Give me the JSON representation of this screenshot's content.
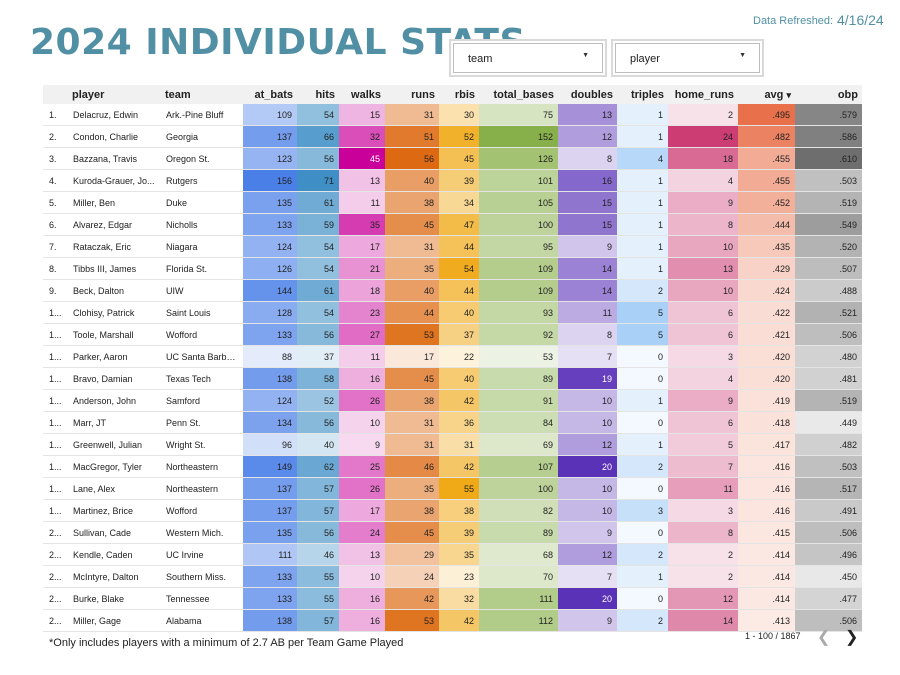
{
  "header": {
    "title": "2024 INDIVIDUAL STATS",
    "refresh_label": "Data Refreshed:",
    "refresh_date": "4/16/24"
  },
  "filters": [
    {
      "label": "team",
      "icon": "caret-down-icon"
    },
    {
      "label": "player",
      "icon": "caret-down-icon"
    }
  ],
  "table": {
    "sort_indicator": "▾",
    "headers": {
      "index": "",
      "player": "player",
      "team": "team",
      "at_bats": "at_bats",
      "hits": "hits",
      "walks": "walks",
      "runs": "runs",
      "rbis": "rbis",
      "total_bases": "total_bases",
      "doubles": "doubles",
      "triples": "triples",
      "home_runs": "home_runs",
      "avg": "avg",
      "obp": "obp"
    },
    "rows": [
      {
        "idx": "1.",
        "player": "Delacruz, Edwin",
        "team": "Ark.-Pine Bluff",
        "at_bats": "109",
        "hits": "54",
        "walks": "15",
        "runs": "31",
        "rbis": "30",
        "total_bases": "75",
        "doubles": "13",
        "triples": "1",
        "home_runs": "2",
        "avg": ".495",
        "obp": ".579"
      },
      {
        "idx": "2.",
        "player": "Condon, Charlie",
        "team": "Georgia",
        "at_bats": "137",
        "hits": "66",
        "walks": "32",
        "runs": "51",
        "rbis": "52",
        "total_bases": "152",
        "doubles": "12",
        "triples": "1",
        "home_runs": "24",
        "avg": ".482",
        "obp": ".586"
      },
      {
        "idx": "3.",
        "player": "Bazzana, Travis",
        "team": "Oregon St.",
        "at_bats": "123",
        "hits": "56",
        "walks": "45",
        "runs": "56",
        "rbis": "45",
        "total_bases": "126",
        "doubles": "8",
        "triples": "4",
        "home_runs": "18",
        "avg": ".455",
        "obp": ".610"
      },
      {
        "idx": "4.",
        "player": "Kuroda-Grauer, Jo...",
        "team": "Rutgers",
        "at_bats": "156",
        "hits": "71",
        "walks": "13",
        "runs": "40",
        "rbis": "39",
        "total_bases": "101",
        "doubles": "16",
        "triples": "1",
        "home_runs": "4",
        "avg": ".455",
        "obp": ".503"
      },
      {
        "idx": "5.",
        "player": "Miller, Ben",
        "team": "Duke",
        "at_bats": "135",
        "hits": "61",
        "walks": "11",
        "runs": "38",
        "rbis": "34",
        "total_bases": "105",
        "doubles": "15",
        "triples": "1",
        "home_runs": "9",
        "avg": ".452",
        "obp": ".519"
      },
      {
        "idx": "6.",
        "player": "Alvarez, Edgar",
        "team": "Nicholls",
        "at_bats": "133",
        "hits": "59",
        "walks": "35",
        "runs": "45",
        "rbis": "47",
        "total_bases": "100",
        "doubles": "15",
        "triples": "1",
        "home_runs": "8",
        "avg": ".444",
        "obp": ".549"
      },
      {
        "idx": "7.",
        "player": "Rataczak, Eric",
        "team": "Niagara",
        "at_bats": "124",
        "hits": "54",
        "walks": "17",
        "runs": "31",
        "rbis": "44",
        "total_bases": "95",
        "doubles": "9",
        "triples": "1",
        "home_runs": "10",
        "avg": ".435",
        "obp": ".520"
      },
      {
        "idx": "8.",
        "player": "Tibbs III, James",
        "team": "Florida St.",
        "at_bats": "126",
        "hits": "54",
        "walks": "21",
        "runs": "35",
        "rbis": "54",
        "total_bases": "109",
        "doubles": "14",
        "triples": "1",
        "home_runs": "13",
        "avg": ".429",
        "obp": ".507"
      },
      {
        "idx": "9.",
        "player": "Beck, Dalton",
        "team": "UIW",
        "at_bats": "144",
        "hits": "61",
        "walks": "18",
        "runs": "40",
        "rbis": "44",
        "total_bases": "109",
        "doubles": "14",
        "triples": "2",
        "home_runs": "10",
        "avg": ".424",
        "obp": ".488"
      },
      {
        "idx": "1...",
        "player": "Clohisy, Patrick",
        "team": "Saint Louis",
        "at_bats": "128",
        "hits": "54",
        "walks": "23",
        "runs": "44",
        "rbis": "40",
        "total_bases": "93",
        "doubles": "11",
        "triples": "5",
        "home_runs": "6",
        "avg": ".422",
        "obp": ".521"
      },
      {
        "idx": "1...",
        "player": "Toole, Marshall",
        "team": "Wofford",
        "at_bats": "133",
        "hits": "56",
        "walks": "27",
        "runs": "53",
        "rbis": "37",
        "total_bases": "92",
        "doubles": "8",
        "triples": "5",
        "home_runs": "6",
        "avg": ".421",
        "obp": ".506"
      },
      {
        "idx": "1...",
        "player": "Parker, Aaron",
        "team": "UC Santa Barba...",
        "at_bats": "88",
        "hits": "37",
        "walks": "11",
        "runs": "17",
        "rbis": "22",
        "total_bases": "53",
        "doubles": "7",
        "triples": "0",
        "home_runs": "3",
        "avg": ".420",
        "obp": ".480"
      },
      {
        "idx": "1...",
        "player": "Bravo, Damian",
        "team": "Texas Tech",
        "at_bats": "138",
        "hits": "58",
        "walks": "16",
        "runs": "45",
        "rbis": "40",
        "total_bases": "89",
        "doubles": "19",
        "triples": "0",
        "home_runs": "4",
        "avg": ".420",
        "obp": ".481"
      },
      {
        "idx": "1...",
        "player": "Anderson, John",
        "team": "Samford",
        "at_bats": "124",
        "hits": "52",
        "walks": "26",
        "runs": "38",
        "rbis": "42",
        "total_bases": "91",
        "doubles": "10",
        "triples": "1",
        "home_runs": "9",
        "avg": ".419",
        "obp": ".519"
      },
      {
        "idx": "1...",
        "player": "Marr, JT",
        "team": "Penn St.",
        "at_bats": "134",
        "hits": "56",
        "walks": "10",
        "runs": "31",
        "rbis": "36",
        "total_bases": "84",
        "doubles": "10",
        "triples": "0",
        "home_runs": "6",
        "avg": ".418",
        "obp": ".449"
      },
      {
        "idx": "1...",
        "player": "Greenwell, Julian",
        "team": "Wright St.",
        "at_bats": "96",
        "hits": "40",
        "walks": "9",
        "runs": "31",
        "rbis": "31",
        "total_bases": "69",
        "doubles": "12",
        "triples": "1",
        "home_runs": "5",
        "avg": ".417",
        "obp": ".482"
      },
      {
        "idx": "1...",
        "player": "MacGregor, Tyler",
        "team": "Northeastern",
        "at_bats": "149",
        "hits": "62",
        "walks": "25",
        "runs": "46",
        "rbis": "42",
        "total_bases": "107",
        "doubles": "20",
        "triples": "2",
        "home_runs": "7",
        "avg": ".416",
        "obp": ".503"
      },
      {
        "idx": "1...",
        "player": "Lane, Alex",
        "team": "Northeastern",
        "at_bats": "137",
        "hits": "57",
        "walks": "26",
        "runs": "35",
        "rbis": "55",
        "total_bases": "100",
        "doubles": "10",
        "triples": "0",
        "home_runs": "11",
        "avg": ".416",
        "obp": ".517"
      },
      {
        "idx": "1...",
        "player": "Martinez, Brice",
        "team": "Wofford",
        "at_bats": "137",
        "hits": "57",
        "walks": "17",
        "runs": "38",
        "rbis": "38",
        "total_bases": "82",
        "doubles": "10",
        "triples": "3",
        "home_runs": "3",
        "avg": ".416",
        "obp": ".491"
      },
      {
        "idx": "2...",
        "player": "Sullivan, Cade",
        "team": "Western Mich.",
        "at_bats": "135",
        "hits": "56",
        "walks": "24",
        "runs": "45",
        "rbis": "39",
        "total_bases": "89",
        "doubles": "9",
        "triples": "0",
        "home_runs": "8",
        "avg": ".415",
        "obp": ".506"
      },
      {
        "idx": "2...",
        "player": "Kendle, Caden",
        "team": "UC Irvine",
        "at_bats": "111",
        "hits": "46",
        "walks": "13",
        "runs": "29",
        "rbis": "35",
        "total_bases": "68",
        "doubles": "12",
        "triples": "2",
        "home_runs": "2",
        "avg": ".414",
        "obp": ".496"
      },
      {
        "idx": "2...",
        "player": "McIntyre, Dalton",
        "team": "Southern Miss.",
        "at_bats": "133",
        "hits": "55",
        "walks": "10",
        "runs": "24",
        "rbis": "23",
        "total_bases": "70",
        "doubles": "7",
        "triples": "1",
        "home_runs": "2",
        "avg": ".414",
        "obp": ".450"
      },
      {
        "idx": "2...",
        "player": "Burke, Blake",
        "team": "Tennessee",
        "at_bats": "133",
        "hits": "55",
        "walks": "16",
        "runs": "42",
        "rbis": "32",
        "total_bases": "111",
        "doubles": "20",
        "triples": "0",
        "home_runs": "12",
        "avg": ".414",
        "obp": ".477"
      },
      {
        "idx": "2...",
        "player": "Miller, Gage",
        "team": "Alabama",
        "at_bats": "138",
        "hits": "57",
        "walks": "16",
        "runs": "53",
        "rbis": "42",
        "total_bases": "112",
        "doubles": "9",
        "triples": "2",
        "home_runs": "14",
        "avg": ".413",
        "obp": ".506"
      }
    ]
  },
  "heat_colors": {
    "at_bats": "#4a7fe8",
    "hits": "#3f8fc6",
    "walks": "#c9009a",
    "runs": "#dd6a12",
    "rbis": "#f0aa18",
    "total_bases": "#88b04a",
    "doubles": "#5a32b8",
    "triples": "#6aaef0",
    "home_runs": "#cc3d74",
    "avg": "#e8704a",
    "obp": "#6e6e6e"
  },
  "footer": {
    "note": "*Only includes players with a minimum of 2.7 AB per Team Game Played",
    "range": "1 - 100 / 1867",
    "prev_icon": "chevron-left-icon",
    "next_icon": "chevron-right-icon"
  }
}
